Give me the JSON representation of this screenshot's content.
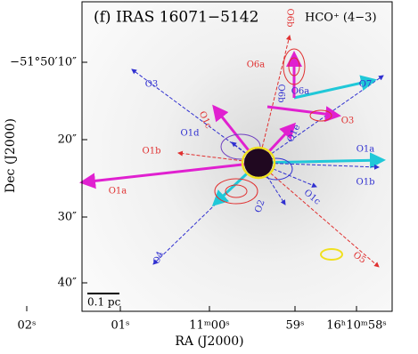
{
  "title": "(f) IRAS 16071−5142",
  "molecule": "HCO⁺ (4−3)",
  "axes": {
    "x_label": "RA (J2000)",
    "y_label": "Dec (J2000)",
    "x_ticks": [
      "02ˢ",
      "01ˢ",
      "11ᵐ00ˢ",
      "59ˢ",
      "16ʰ10ᵐ58ˢ"
    ],
    "y_ticks": [
      "−51°50′10″",
      "20″",
      "30″",
      "40″"
    ]
  },
  "scale_bar": "0.1 pc",
  "outflows": [
    "O6b",
    "O6a",
    "O6b",
    "O6a",
    "O7",
    "O3",
    "O3",
    "O1c",
    "O1d",
    "O1e",
    "O1b",
    "O1a",
    "O1b",
    "O1a",
    "O2",
    "O1c",
    "O4",
    "O5"
  ]
}
